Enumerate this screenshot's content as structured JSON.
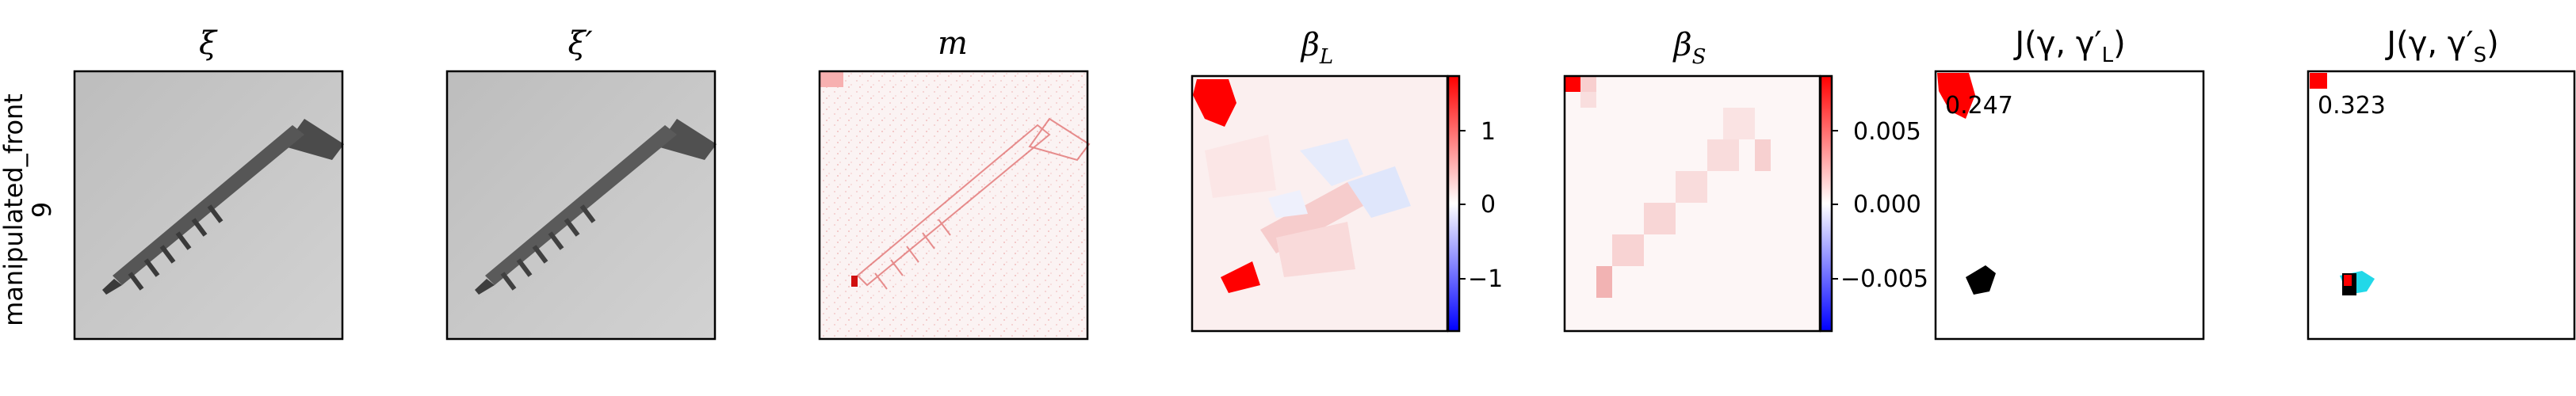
{
  "figure": {
    "row_label": "manipulated_front",
    "row_index": "9",
    "panels": [
      {
        "id": "xi",
        "title": "ξ"
      },
      {
        "id": "xi_prime",
        "title": "ξ′"
      },
      {
        "id": "m",
        "title": "m"
      },
      {
        "id": "beta_L",
        "title": "β",
        "title_sub": "L",
        "colorbar": {
          "ticks": [
            "1",
            "0",
            "−1"
          ],
          "colors": [
            "#ff0000",
            "#ffffff",
            "#0000ff"
          ]
        }
      },
      {
        "id": "beta_S",
        "title": "β",
        "title_sub": "S",
        "colorbar": {
          "ticks": [
            "0.005",
            "0.000",
            "−0.005"
          ],
          "colors": [
            "#ff0000",
            "#ffffff",
            "#0000ff"
          ]
        }
      },
      {
        "id": "J_L",
        "title": "J(γ, γ′",
        "title_sub": "L",
        "title_end": ")",
        "score": "0.247"
      },
      {
        "id": "J_S",
        "title": "J(γ, γ′",
        "title_sub": "S",
        "title_end": ")",
        "score": "0.323"
      }
    ]
  }
}
